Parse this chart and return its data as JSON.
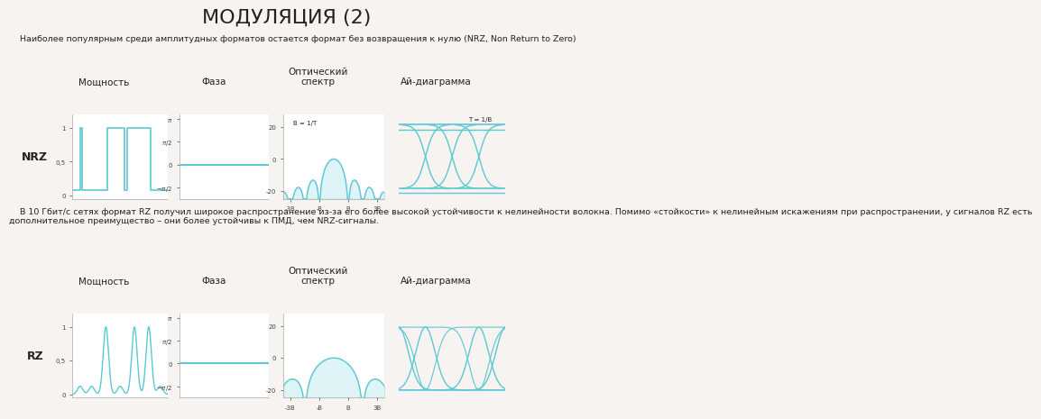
{
  "title": "МОДУЛЯЦИЯ (2)",
  "title_fontsize": 16,
  "bg_color": "#f7f3f0",
  "line_color": "#5bc8d4",
  "text_color": "#222222",
  "intro_text": "    Наиболее популярным среди амплитудных форматов остается формат без возвращения к нулю (NRZ, Non Return to Zero)",
  "middle_text": "    В 10 Гбит/с сетях формат RZ получил широкое распространение из-за его более высокой устойчивости к нелинейности волокна. Помимо «стойкости» к нелинейным искажениям при распространении, у сигналов RZ есть\nдополнительное преимущество – они более устойчивы к ПМД, чем NRZ-сигналы.",
  "col_titles": [
    "Мощность",
    "Фаза",
    "Оптический\nспектр",
    "Ай-диаграмма"
  ],
  "row_labels": [
    "NRZ",
    "RZ"
  ],
  "nrz_signal_t": [
    0,
    0.08,
    0.08,
    0.1,
    0.1,
    0.35,
    0.35,
    0.37,
    0.37,
    0.55,
    0.55,
    0.57,
    0.57,
    0.82,
    0.82,
    0.84,
    0.84,
    1.0
  ],
  "nrz_signal_v": [
    0.08,
    0.08,
    1.0,
    1.0,
    0.08,
    0.08,
    0.08,
    0.08,
    1.0,
    1.0,
    0.08,
    0.08,
    1.0,
    1.0,
    0.08,
    0.08,
    0.08,
    0.08
  ]
}
